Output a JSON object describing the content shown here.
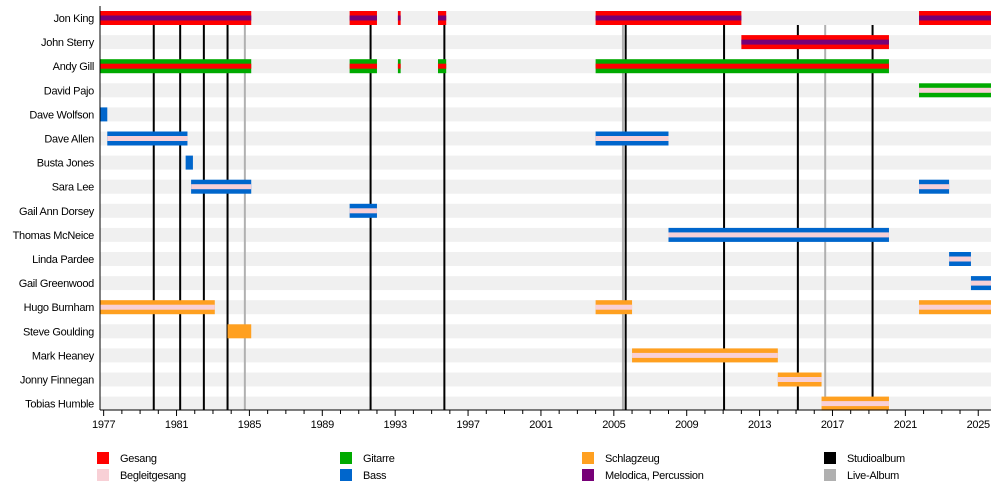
{
  "chart_data": {
    "type": "timeline",
    "title": "",
    "x_range": [
      1976.8,
      2025.7
    ],
    "x_ticks": [
      "1977",
      "1981",
      "1985",
      "1989",
      "1993",
      "1997",
      "2001",
      "2005",
      "2009",
      "2013",
      "2017",
      "2021",
      "2025"
    ],
    "colors": {
      "vocals": "#ff0000",
      "backing": "#f8d0d6",
      "guitar": "#00aa00",
      "bass": "#0066cc",
      "drums": "#ffa020",
      "melodica": "#770077",
      "studio": "#000000",
      "live": "#b0b0b0",
      "row_band": "#f0f0f0"
    },
    "members": [
      {
        "name": "Jon King",
        "segments": [
          [
            1976.8,
            1985.1,
            "vocals",
            "melodica"
          ],
          [
            1990.5,
            1992.0,
            "vocals",
            "melodica"
          ],
          [
            1993.15,
            1993.3,
            "vocals",
            "melodica"
          ],
          [
            1995.35,
            1995.8,
            "vocals",
            "melodica"
          ],
          [
            2004.0,
            2012.0,
            "vocals",
            "melodica"
          ],
          [
            2021.75,
            2025.7,
            "vocals",
            "melodica"
          ]
        ]
      },
      {
        "name": "John Sterry",
        "segments": [
          [
            2012.0,
            2020.1,
            "vocals",
            "melodica"
          ]
        ]
      },
      {
        "name": "Andy Gill",
        "segments": [
          [
            1976.8,
            1985.1,
            "guitar",
            "vocals"
          ],
          [
            1990.5,
            1992.0,
            "guitar",
            "vocals"
          ],
          [
            1993.15,
            1993.3,
            "guitar",
            "vocals"
          ],
          [
            1995.35,
            1995.8,
            "guitar",
            "vocals"
          ],
          [
            2004.0,
            2020.1,
            "guitar",
            "vocals"
          ]
        ]
      },
      {
        "name": "David Pajo",
        "segments": [
          [
            2021.75,
            2025.7,
            "guitar",
            "backing"
          ]
        ]
      },
      {
        "name": "Dave Wolfson",
        "segments": [
          [
            1976.8,
            1977.2,
            "bass",
            null
          ]
        ]
      },
      {
        "name": "Dave Allen",
        "segments": [
          [
            1977.2,
            1981.6,
            "bass",
            "backing"
          ],
          [
            2004.0,
            2008.0,
            "bass",
            "backing"
          ]
        ]
      },
      {
        "name": "Busta Jones",
        "segments": [
          [
            1981.5,
            1981.9,
            "bass",
            null
          ]
        ]
      },
      {
        "name": "Sara Lee",
        "segments": [
          [
            1981.8,
            1985.1,
            "bass",
            "backing"
          ],
          [
            2021.75,
            2023.4,
            "bass",
            "backing"
          ]
        ]
      },
      {
        "name": "Gail Ann Dorsey",
        "segments": [
          [
            1990.5,
            1992.0,
            "bass",
            "backing"
          ]
        ]
      },
      {
        "name": "Thomas McNeice",
        "segments": [
          [
            2008.0,
            2020.1,
            "bass",
            "backing"
          ]
        ]
      },
      {
        "name": "Linda Pardee",
        "segments": [
          [
            2023.4,
            2024.6,
            "bass",
            "backing"
          ]
        ]
      },
      {
        "name": "Gail Greenwood",
        "segments": [
          [
            2024.6,
            2025.7,
            "bass",
            "backing"
          ]
        ]
      },
      {
        "name": "Hugo Burnham",
        "segments": [
          [
            1976.8,
            1983.1,
            "drums",
            "backing"
          ],
          [
            2004.0,
            2006.0,
            "drums",
            "backing"
          ],
          [
            2021.75,
            2025.7,
            "drums",
            "backing"
          ]
        ]
      },
      {
        "name": "Steve Goulding",
        "segments": [
          [
            1983.8,
            1985.1,
            "drums",
            null
          ]
        ]
      },
      {
        "name": "Mark Heaney",
        "segments": [
          [
            2006.0,
            2014.0,
            "drums",
            "backing"
          ]
        ]
      },
      {
        "name": "Jonny Finnegan",
        "segments": [
          [
            2014.0,
            2016.4,
            "drums",
            "backing"
          ]
        ]
      },
      {
        "name": "Tobias Humble",
        "segments": [
          [
            2016.4,
            2020.1,
            "drums",
            "backing"
          ]
        ]
      }
    ],
    "studio_albums": [
      1979.75,
      1981.2,
      1982.5,
      1983.8,
      1991.65,
      1995.7,
      2005.65,
      2011.05,
      2015.1,
      2019.2
    ],
    "live_albums": [
      1984.75,
      2005.5,
      2016.6
    ],
    "legend": [
      {
        "key": "vocals",
        "label": "Gesang"
      },
      {
        "key": "backing",
        "label": "Begleitgesang"
      },
      {
        "key": "guitar",
        "label": "Gitarre"
      },
      {
        "key": "bass",
        "label": "Bass"
      },
      {
        "key": "drums",
        "label": "Schlagzeug"
      },
      {
        "key": "melodica",
        "label": "Melodica, Percussion"
      },
      {
        "key": "studio",
        "label": "Studioalbum"
      },
      {
        "key": "live",
        "label": "Live-Album"
      }
    ],
    "legend_placement": "bottom"
  }
}
